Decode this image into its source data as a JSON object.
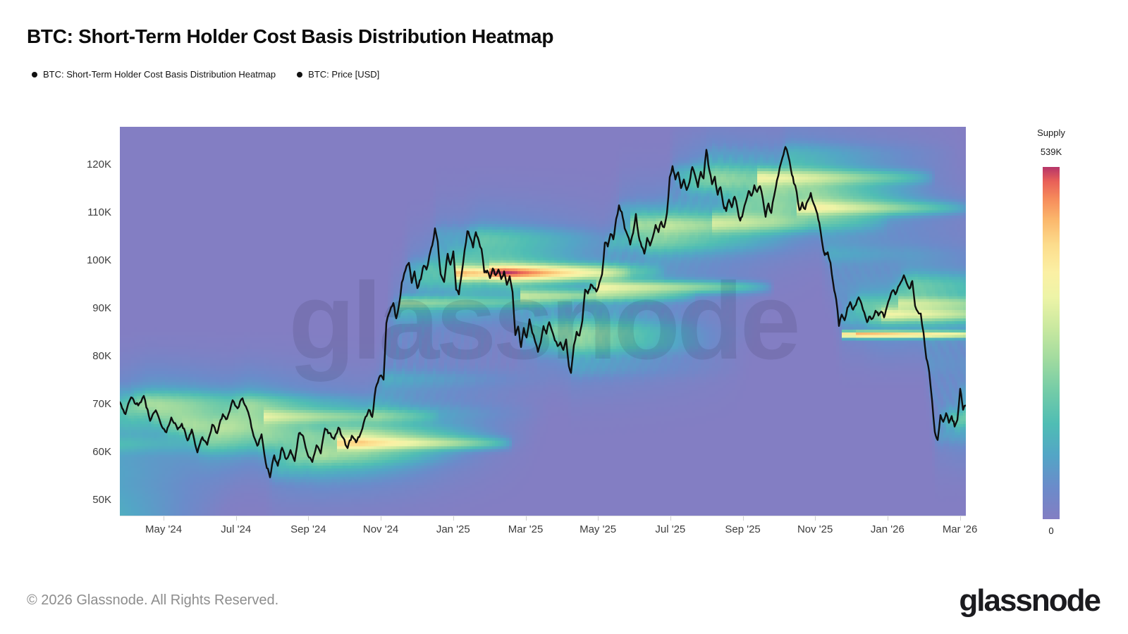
{
  "page": {
    "title": "BTC: Short-Term Holder Cost Basis Distribution Heatmap",
    "watermark": "glassnode",
    "footer_copyright": "© 2026 Glassnode. All Rights Reserved.",
    "footer_logo": "glassnode"
  },
  "legend": [
    {
      "label": "BTC: Short-Term Holder Cost Basis Distribution Heatmap",
      "swatch": "#111111"
    },
    {
      "label": "BTC: Price [USD]",
      "swatch": "#111111"
    }
  ],
  "chart_data": {
    "type": "heatmap",
    "title": "BTC: Short-Term Holder Cost Basis Distribution Heatmap",
    "grid": false,
    "x_axis": {
      "ticks": [
        {
          "label": "May '24",
          "f": 0.0517
        },
        {
          "label": "Jul '24",
          "f": 0.1373
        },
        {
          "label": "Sep '24",
          "f": 0.2228
        },
        {
          "label": "Nov '24",
          "f": 0.3084
        },
        {
          "label": "Jan '25",
          "f": 0.394
        },
        {
          "label": "Mar '25",
          "f": 0.4796
        },
        {
          "label": "May '25",
          "f": 0.5651
        },
        {
          "label": "Jul '25",
          "f": 0.6507
        },
        {
          "label": "Sep '25",
          "f": 0.7363
        },
        {
          "label": "Nov '25",
          "f": 0.8218
        },
        {
          "label": "Jan '26",
          "f": 0.9074
        },
        {
          "label": "Mar '26",
          "f": 0.993
        }
      ]
    },
    "y_axis": {
      "unit": "USD (thousands)",
      "lim": [
        46.8,
        128.0
      ],
      "ticks": [
        {
          "label": "120K",
          "value": 120
        },
        {
          "label": "110K",
          "value": 110
        },
        {
          "label": "100K",
          "value": 100
        },
        {
          "label": "90K",
          "value": 90
        },
        {
          "label": "80K",
          "value": 80
        },
        {
          "label": "70K",
          "value": 70
        },
        {
          "label": "60K",
          "value": 60
        },
        {
          "label": "50K",
          "value": 50
        }
      ]
    },
    "colorbar": {
      "title": "Supply",
      "max_label": "539K",
      "min_label": "0",
      "stops": [
        [
          0.0,
          "#837EC3"
        ],
        [
          0.09,
          "#6B8BCA"
        ],
        [
          0.18,
          "#53A5C6"
        ],
        [
          0.27,
          "#4FBDB4"
        ],
        [
          0.36,
          "#72CBA8"
        ],
        [
          0.45,
          "#9FDA9F"
        ],
        [
          0.54,
          "#C8E89F"
        ],
        [
          0.63,
          "#EDF4A7"
        ],
        [
          0.7,
          "#FBF0A4"
        ],
        [
          0.78,
          "#FCDC8C"
        ],
        [
          0.85,
          "#FBB76C"
        ],
        [
          0.91,
          "#F68B5B"
        ],
        [
          0.96,
          "#E85F58"
        ],
        [
          1.0,
          "#B63569"
        ]
      ]
    },
    "heatmap": {
      "name": "BTC: Short-Term Holder Cost Basis Distribution Heatmap",
      "background": "#837EC3",
      "window": 0.21,
      "weight_pow": 1.25,
      "sigma_narrow": 1.1,
      "sigma_wide": 4.5,
      "wide_frac": 0.16,
      "gamma": 0.62,
      "cols": 300,
      "rows": 140,
      "hotspot_gain": 26,
      "hotspots": [
        [
          0.168,
          67.5,
          0.45,
          0.9
        ],
        [
          0.255,
          61.9,
          0.85,
          0.8
        ],
        [
          0.328,
          91.3,
          0.4,
          0.8
        ],
        [
          0.395,
          97.4,
          1.15,
          0.9
        ],
        [
          0.435,
          97.9,
          0.5,
          1.0
        ],
        [
          0.472,
          92.7,
          0.55,
          0.8
        ],
        [
          0.563,
          94.5,
          0.65,
          0.8
        ],
        [
          0.605,
          107.6,
          0.35,
          1.3
        ],
        [
          0.7,
          108.2,
          0.35,
          1.3
        ],
        [
          0.755,
          117.4,
          0.6,
          1.0
        ],
        [
          0.8,
          111.0,
          0.55,
          0.9
        ],
        [
          0.853,
          84.6,
          1.35,
          0.45
        ],
        [
          0.87,
          84.6,
          0.4,
          0.45
        ],
        [
          0.9,
          88.8,
          0.45,
          0.8
        ],
        [
          0.92,
          91.2,
          0.4,
          0.8
        ]
      ]
    },
    "price_line": {
      "name": "BTC: Price [USD]",
      "color": "#0e0e0e",
      "points": [
        [
          -0.21,
          35.5
        ],
        [
          -0.19,
          37.5
        ],
        [
          -0.17,
          42.5
        ],
        [
          -0.15,
          43.0
        ],
        [
          -0.13,
          42.0
        ],
        [
          -0.11,
          44.0
        ],
        [
          -0.09,
          47.5
        ],
        [
          -0.075,
          51.5
        ],
        [
          -0.06,
          57.0
        ],
        [
          -0.05,
          62.0
        ],
        [
          -0.04,
          61.5
        ],
        [
          -0.03,
          68.5
        ],
        [
          -0.022,
          73.0
        ],
        [
          -0.015,
          64.8
        ],
        [
          -0.008,
          68.5
        ],
        [
          0.0,
          70.5
        ],
        [
          0.0067,
          68.0
        ],
        [
          0.0133,
          71.5
        ],
        [
          0.0217,
          69.8
        ],
        [
          0.0283,
          71.8
        ],
        [
          0.0358,
          66.6
        ],
        [
          0.0425,
          68.8
        ],
        [
          0.0483,
          66.0
        ],
        [
          0.055,
          64.2
        ],
        [
          0.0608,
          67.3
        ],
        [
          0.0683,
          64.8
        ],
        [
          0.0733,
          66.0
        ],
        [
          0.08,
          62.5
        ],
        [
          0.085,
          64.8
        ],
        [
          0.0917,
          60.0
        ],
        [
          0.0975,
          63.2
        ],
        [
          0.1033,
          61.6
        ],
        [
          0.1092,
          65.8
        ],
        [
          0.115,
          64.0
        ],
        [
          0.1217,
          68.0
        ],
        [
          0.1267,
          67.0
        ],
        [
          0.1333,
          70.9
        ],
        [
          0.1392,
          69.2
        ],
        [
          0.145,
          71.3
        ],
        [
          0.1517,
          68.4
        ],
        [
          0.1567,
          64.5
        ],
        [
          0.1625,
          61.4
        ],
        [
          0.1675,
          63.8
        ],
        [
          0.1725,
          57.8
        ],
        [
          0.1775,
          54.8
        ],
        [
          0.1825,
          59.4
        ],
        [
          0.1867,
          57.2
        ],
        [
          0.1917,
          61.0
        ],
        [
          0.1967,
          58.6
        ],
        [
          0.2017,
          60.5
        ],
        [
          0.2067,
          58.2
        ],
        [
          0.2117,
          64.0
        ],
        [
          0.2167,
          63.4
        ],
        [
          0.2225,
          59.3
        ],
        [
          0.2275,
          58.0
        ],
        [
          0.2325,
          61.5
        ],
        [
          0.2375,
          59.8
        ],
        [
          0.2425,
          65.0
        ],
        [
          0.2475,
          64.1
        ],
        [
          0.2533,
          62.8
        ],
        [
          0.2583,
          65.2
        ],
        [
          0.2642,
          63.0
        ],
        [
          0.2692,
          60.9
        ],
        [
          0.2742,
          63.5
        ],
        [
          0.2792,
          62.1
        ],
        [
          0.2842,
          63.8
        ],
        [
          0.2892,
          66.8
        ],
        [
          0.2942,
          68.9
        ],
        [
          0.2983,
          67.4
        ],
        [
          0.3025,
          73.5
        ],
        [
          0.3075,
          76.0
        ],
        [
          0.3117,
          75.2
        ],
        [
          0.315,
          87.0
        ],
        [
          0.3192,
          89.5
        ],
        [
          0.3233,
          91.2
        ],
        [
          0.3267,
          88.0
        ],
        [
          0.33,
          90.8
        ],
        [
          0.3333,
          95.5
        ],
        [
          0.3375,
          98.0
        ],
        [
          0.3417,
          99.6
        ],
        [
          0.345,
          95.4
        ],
        [
          0.3483,
          97.8
        ],
        [
          0.3517,
          94.3
        ],
        [
          0.3558,
          96.2
        ],
        [
          0.3592,
          99.0
        ],
        [
          0.3625,
          98.2
        ],
        [
          0.3658,
          101.0
        ],
        [
          0.3692,
          103.2
        ],
        [
          0.3725,
          106.8
        ],
        [
          0.3758,
          104.0
        ],
        [
          0.3792,
          97.2
        ],
        [
          0.3833,
          95.6
        ],
        [
          0.3875,
          101.5
        ],
        [
          0.3908,
          99.2
        ],
        [
          0.3942,
          102.0
        ],
        [
          0.3975,
          94.0
        ],
        [
          0.4008,
          93.0
        ],
        [
          0.4042,
          97.5
        ],
        [
          0.4075,
          102.2
        ],
        [
          0.4108,
          106.2
        ],
        [
          0.4142,
          104.8
        ],
        [
          0.4175,
          102.8
        ],
        [
          0.4208,
          106.0
        ],
        [
          0.4242,
          104.2
        ],
        [
          0.4275,
          102.5
        ],
        [
          0.4308,
          97.6
        ],
        [
          0.4342,
          98.0
        ],
        [
          0.4375,
          96.4
        ],
        [
          0.4408,
          98.4
        ],
        [
          0.4442,
          97.0
        ],
        [
          0.4475,
          98.2
        ],
        [
          0.4508,
          96.2
        ],
        [
          0.4542,
          97.8
        ],
        [
          0.4575,
          95.0
        ],
        [
          0.4608,
          96.8
        ],
        [
          0.4642,
          93.5
        ],
        [
          0.4675,
          84.5
        ],
        [
          0.4708,
          86.3
        ],
        [
          0.4742,
          82.0
        ],
        [
          0.4775,
          86.0
        ],
        [
          0.4808,
          84.0
        ],
        [
          0.4842,
          87.8
        ],
        [
          0.4875,
          85.0
        ],
        [
          0.4908,
          83.2
        ],
        [
          0.4942,
          81.0
        ],
        [
          0.4975,
          83.0
        ],
        [
          0.5008,
          86.4
        ],
        [
          0.5042,
          84.8
        ],
        [
          0.5075,
          87.2
        ],
        [
          0.5108,
          85.4
        ],
        [
          0.5142,
          83.4
        ],
        [
          0.5175,
          82.2
        ],
        [
          0.5208,
          83.0
        ],
        [
          0.5242,
          81.4
        ],
        [
          0.5275,
          83.6
        ],
        [
          0.5308,
          78.0
        ],
        [
          0.5333,
          76.6
        ],
        [
          0.5367,
          82.4
        ],
        [
          0.54,
          85.2
        ],
        [
          0.5433,
          84.4
        ],
        [
          0.5467,
          87.5
        ],
        [
          0.55,
          94.0
        ],
        [
          0.5533,
          93.2
        ],
        [
          0.5567,
          95.1
        ],
        [
          0.56,
          94.3
        ],
        [
          0.5633,
          93.6
        ],
        [
          0.5667,
          95.4
        ],
        [
          0.57,
          97.2
        ],
        [
          0.5733,
          103.8
        ],
        [
          0.5767,
          103.0
        ],
        [
          0.58,
          105.6
        ],
        [
          0.5833,
          104.5
        ],
        [
          0.5867,
          108.8
        ],
        [
          0.59,
          111.6
        ],
        [
          0.5933,
          110.2
        ],
        [
          0.5967,
          106.8
        ],
        [
          0.6,
          105.4
        ],
        [
          0.6033,
          103.4
        ],
        [
          0.6067,
          105.8
        ],
        [
          0.61,
          109.8
        ],
        [
          0.6133,
          105.2
        ],
        [
          0.6167,
          103.0
        ],
        [
          0.62,
          101.5
        ],
        [
          0.6233,
          104.8
        ],
        [
          0.6267,
          103.2
        ],
        [
          0.63,
          105.0
        ],
        [
          0.6333,
          107.5
        ],
        [
          0.6367,
          106.0
        ],
        [
          0.64,
          108.2
        ],
        [
          0.6433,
          107.0
        ],
        [
          0.6467,
          110.0
        ],
        [
          0.65,
          117.5
        ],
        [
          0.6533,
          119.8
        ],
        [
          0.6567,
          117.0
        ],
        [
          0.66,
          118.5
        ],
        [
          0.6633,
          115.2
        ],
        [
          0.6667,
          117.0
        ],
        [
          0.67,
          114.8
        ],
        [
          0.6733,
          116.4
        ],
        [
          0.6767,
          119.6
        ],
        [
          0.68,
          117.8
        ],
        [
          0.6833,
          115.4
        ],
        [
          0.6867,
          118.6
        ],
        [
          0.69,
          117.2
        ],
        [
          0.6933,
          123.2
        ],
        [
          0.6967,
          119.0
        ],
        [
          0.7,
          116.0
        ],
        [
          0.7033,
          117.6
        ],
        [
          0.7067,
          113.8
        ],
        [
          0.71,
          115.4
        ],
        [
          0.7133,
          111.8
        ],
        [
          0.7167,
          110.4
        ],
        [
          0.72,
          112.8
        ],
        [
          0.7233,
          111.2
        ],
        [
          0.7267,
          113.4
        ],
        [
          0.73,
          111.0
        ],
        [
          0.7333,
          108.4
        ],
        [
          0.7367,
          110.2
        ],
        [
          0.74,
          112.4
        ],
        [
          0.7433,
          114.6
        ],
        [
          0.7467,
          113.6
        ],
        [
          0.75,
          115.8
        ],
        [
          0.7533,
          114.4
        ],
        [
          0.7567,
          115.6
        ],
        [
          0.76,
          113.0
        ],
        [
          0.7633,
          109.2
        ],
        [
          0.7667,
          112.0
        ],
        [
          0.77,
          110.0
        ],
        [
          0.7733,
          113.5
        ],
        [
          0.7767,
          116.8
        ],
        [
          0.78,
          119.5
        ],
        [
          0.7833,
          121.6
        ],
        [
          0.7867,
          123.8
        ],
        [
          0.79,
          122.0
        ],
        [
          0.7933,
          119.0
        ],
        [
          0.7967,
          116.2
        ],
        [
          0.8,
          114.4
        ],
        [
          0.8033,
          110.6
        ],
        [
          0.8067,
          112.2
        ],
        [
          0.81,
          110.8
        ],
        [
          0.8133,
          112.6
        ],
        [
          0.8167,
          114.2
        ],
        [
          0.82,
          112.0
        ],
        [
          0.8233,
          110.4
        ],
        [
          0.8267,
          108.0
        ],
        [
          0.83,
          104.0
        ],
        [
          0.8333,
          101.2
        ],
        [
          0.8367,
          101.8
        ],
        [
          0.84,
          99.6
        ],
        [
          0.8433,
          95.2
        ],
        [
          0.8467,
          92.0
        ],
        [
          0.85,
          86.4
        ],
        [
          0.8533,
          88.8
        ],
        [
          0.8567,
          87.6
        ],
        [
          0.86,
          90.2
        ],
        [
          0.8633,
          91.4
        ],
        [
          0.8667,
          89.8
        ],
        [
          0.87,
          90.8
        ],
        [
          0.8733,
          92.4
        ],
        [
          0.8767,
          91.0
        ],
        [
          0.88,
          89.2
        ],
        [
          0.8833,
          87.2
        ],
        [
          0.8867,
          88.4
        ],
        [
          0.89,
          88.0
        ],
        [
          0.8933,
          89.6
        ],
        [
          0.8967,
          88.6
        ],
        [
          0.9,
          89.4
        ],
        [
          0.9033,
          88.2
        ],
        [
          0.9067,
          90.4
        ],
        [
          0.91,
          92.2
        ],
        [
          0.9133,
          93.8
        ],
        [
          0.9167,
          93.0
        ],
        [
          0.92,
          94.6
        ],
        [
          0.9233,
          95.6
        ],
        [
          0.9267,
          97.0
        ],
        [
          0.93,
          95.4
        ],
        [
          0.9333,
          94.2
        ],
        [
          0.9367,
          95.8
        ],
        [
          0.94,
          90.6
        ],
        [
          0.9433,
          89.4
        ],
        [
          0.9467,
          89.0
        ],
        [
          0.95,
          85.0
        ],
        [
          0.9533,
          79.6
        ],
        [
          0.9567,
          76.8
        ],
        [
          0.96,
          71.0
        ],
        [
          0.9633,
          64.3
        ],
        [
          0.9667,
          62.6
        ],
        [
          0.97,
          67.8
        ],
        [
          0.9733,
          66.4
        ],
        [
          0.9767,
          68.2
        ],
        [
          0.98,
          66.2
        ],
        [
          0.9833,
          67.6
        ],
        [
          0.9867,
          65.4
        ],
        [
          0.99,
          66.8
        ],
        [
          0.9933,
          73.3
        ],
        [
          0.9967,
          68.9
        ],
        [
          1.0,
          69.8
        ]
      ]
    }
  }
}
